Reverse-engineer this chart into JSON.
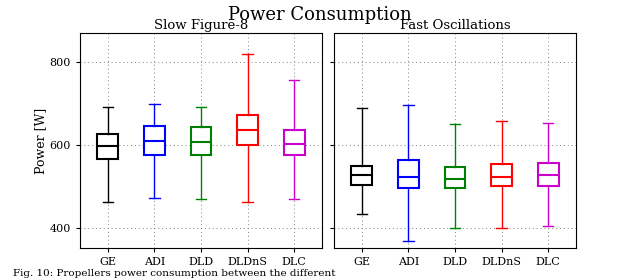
{
  "title": "Power Consumption",
  "subplot1_title": "Slow Figure-8",
  "subplot2_title": "Fast Oscillations",
  "ylabel": "Power [W]",
  "categories": [
    "GE",
    "ADI",
    "DLD",
    "DLDnS",
    "DLC"
  ],
  "colors": [
    "#000000",
    "#0000ff",
    "#008000",
    "#ff0000",
    "#cc00cc"
  ],
  "ylim": [
    350,
    870
  ],
  "yticks": [
    400,
    600,
    800
  ],
  "slow_figure8": {
    "GE": {
      "whislo": 463,
      "q1": 567,
      "med": 597,
      "q3": 627,
      "whishi": 693
    },
    "ADI": {
      "whislo": 472,
      "q1": 577,
      "med": 610,
      "q3": 645,
      "whishi": 700
    },
    "DLD": {
      "whislo": 470,
      "q1": 577,
      "med": 607,
      "q3": 643,
      "whishi": 693
    },
    "DLDnS": {
      "whislo": 462,
      "q1": 600,
      "med": 637,
      "q3": 672,
      "whishi": 820
    },
    "DLC": {
      "whislo": 470,
      "q1": 577,
      "med": 603,
      "q3": 637,
      "whishi": 757
    }
  },
  "fast_oscillations": {
    "GE": {
      "whislo": 433,
      "q1": 503,
      "med": 527,
      "q3": 550,
      "whishi": 690
    },
    "ADI": {
      "whislo": 367,
      "q1": 497,
      "med": 523,
      "q3": 563,
      "whishi": 697
    },
    "DLD": {
      "whislo": 400,
      "q1": 497,
      "med": 517,
      "q3": 547,
      "whishi": 650
    },
    "DLDnS": {
      "whislo": 400,
      "q1": 500,
      "med": 523,
      "q3": 553,
      "whishi": 657
    },
    "DLC": {
      "whislo": 403,
      "q1": 500,
      "med": 527,
      "q3": 557,
      "whishi": 653
    }
  },
  "caption": "Fig. 10: Propellers power consumption between the different"
}
